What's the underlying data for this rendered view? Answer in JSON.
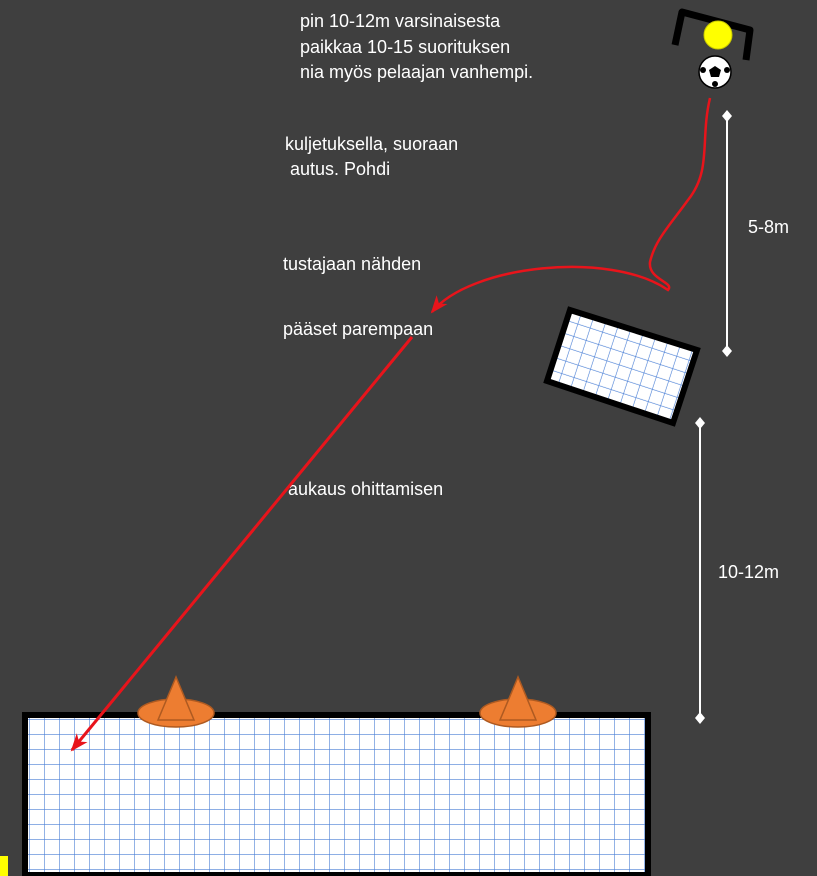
{
  "text_lines": [
    "pin 10-12m varsinaisesta",
    "paikkaa 10-15 suorituksen",
    "nia myös pelaajan vanhempi.",
    "kuljetuksella, suoraan",
    "autus. Pohdi",
    "tustajaan nähden",
    "pääset parempaan",
    "aukaus ohittamisen"
  ],
  "distances": [
    "5-8m",
    "10-12m"
  ]
}
